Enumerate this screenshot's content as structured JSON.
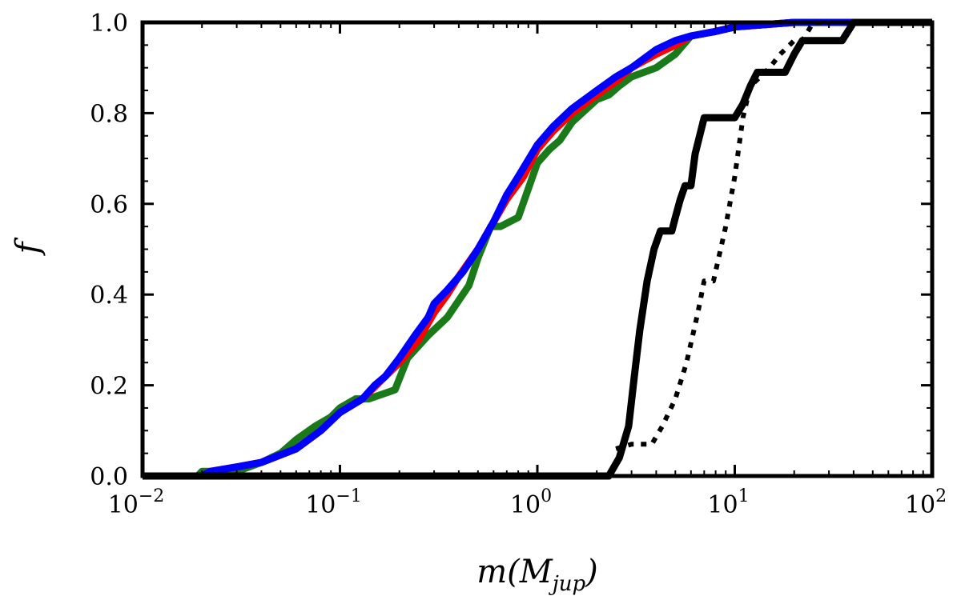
{
  "chart_data": {
    "type": "line",
    "title": "",
    "xlabel": {
      "main": "m(M",
      "sub": "jup",
      "close": ")"
    },
    "ylabel": "f",
    "xscale": "log",
    "xlim": [
      0.01,
      100
    ],
    "ylim": [
      0.0,
      1.0
    ],
    "x_ticks": [
      {
        "value": 0.01,
        "base": "10",
        "exp": "−2"
      },
      {
        "value": 0.1,
        "base": "10",
        "exp": "−1"
      },
      {
        "value": 1,
        "base": "10",
        "exp": "0"
      },
      {
        "value": 10,
        "base": "10",
        "exp": "1"
      },
      {
        "value": 100,
        "base": "10",
        "exp": "2"
      }
    ],
    "y_ticks": [
      {
        "value": 0.0,
        "label": "0.0"
      },
      {
        "value": 0.2,
        "label": "0.2"
      },
      {
        "value": 0.4,
        "label": "0.4"
      },
      {
        "value": 0.6,
        "label": "0.6"
      },
      {
        "value": 0.8,
        "label": "0.8"
      },
      {
        "value": 1.0,
        "label": "1.0"
      }
    ],
    "grid": false,
    "series": [
      {
        "name": "green",
        "color": "#1a7a1a",
        "style": "solid",
        "points": [
          [
            0.01,
            0.0
          ],
          [
            0.019,
            0.0
          ],
          [
            0.02,
            0.01
          ],
          [
            0.03,
            0.01
          ],
          [
            0.04,
            0.03
          ],
          [
            0.05,
            0.05
          ],
          [
            0.06,
            0.08
          ],
          [
            0.075,
            0.11
          ],
          [
            0.09,
            0.13
          ],
          [
            0.1,
            0.15
          ],
          [
            0.12,
            0.17
          ],
          [
            0.14,
            0.17
          ],
          [
            0.19,
            0.19
          ],
          [
            0.22,
            0.26
          ],
          [
            0.28,
            0.31
          ],
          [
            0.35,
            0.35
          ],
          [
            0.45,
            0.42
          ],
          [
            0.5,
            0.48
          ],
          [
            0.58,
            0.55
          ],
          [
            0.65,
            0.55
          ],
          [
            0.8,
            0.57
          ],
          [
            1.0,
            0.69
          ],
          [
            1.15,
            0.72
          ],
          [
            1.3,
            0.74
          ],
          [
            1.5,
            0.78
          ],
          [
            2.0,
            0.83
          ],
          [
            2.3,
            0.84
          ],
          [
            2.6,
            0.86
          ],
          [
            3.0,
            0.88
          ],
          [
            4.0,
            0.9
          ],
          [
            5.0,
            0.93
          ],
          [
            6.0,
            0.97
          ],
          [
            8.0,
            0.98
          ],
          [
            10.0,
            0.99
          ],
          [
            20.0,
            1.0
          ]
        ]
      },
      {
        "name": "red",
        "color": "#ff0000",
        "style": "solid",
        "points": [
          [
            0.01,
            0.0
          ],
          [
            0.02,
            0.0
          ],
          [
            0.022,
            0.01
          ],
          [
            0.03,
            0.02
          ],
          [
            0.04,
            0.03
          ],
          [
            0.06,
            0.06
          ],
          [
            0.08,
            0.1
          ],
          [
            0.1,
            0.14
          ],
          [
            0.13,
            0.17
          ],
          [
            0.17,
            0.22
          ],
          [
            0.2,
            0.25
          ],
          [
            0.25,
            0.3
          ],
          [
            0.3,
            0.36
          ],
          [
            0.35,
            0.4
          ],
          [
            0.4,
            0.44
          ],
          [
            0.5,
            0.5
          ],
          [
            0.6,
            0.56
          ],
          [
            0.7,
            0.61
          ],
          [
            0.85,
            0.66
          ],
          [
            1.0,
            0.72
          ],
          [
            1.2,
            0.76
          ],
          [
            1.5,
            0.8
          ],
          [
            2.0,
            0.84
          ],
          [
            2.5,
            0.87
          ],
          [
            3.0,
            0.9
          ],
          [
            4.0,
            0.93
          ],
          [
            5.0,
            0.95
          ],
          [
            6.0,
            0.97
          ],
          [
            8.0,
            0.98
          ],
          [
            10.0,
            0.99
          ],
          [
            20.0,
            1.0
          ]
        ]
      },
      {
        "name": "blue",
        "color": "#0000ff",
        "style": "solid",
        "points": [
          [
            0.01,
            0.0
          ],
          [
            0.02,
            0.0
          ],
          [
            0.022,
            0.01
          ],
          [
            0.03,
            0.02
          ],
          [
            0.04,
            0.03
          ],
          [
            0.06,
            0.06
          ],
          [
            0.08,
            0.1
          ],
          [
            0.1,
            0.14
          ],
          [
            0.13,
            0.17
          ],
          [
            0.15,
            0.2
          ],
          [
            0.17,
            0.22
          ],
          [
            0.2,
            0.26
          ],
          [
            0.24,
            0.31
          ],
          [
            0.28,
            0.35
          ],
          [
            0.3,
            0.38
          ],
          [
            0.35,
            0.41
          ],
          [
            0.42,
            0.45
          ],
          [
            0.5,
            0.5
          ],
          [
            0.6,
            0.56
          ],
          [
            0.7,
            0.62
          ],
          [
            0.8,
            0.66
          ],
          [
            1.0,
            0.73
          ],
          [
            1.2,
            0.77
          ],
          [
            1.5,
            0.81
          ],
          [
            2.0,
            0.85
          ],
          [
            2.5,
            0.88
          ],
          [
            3.0,
            0.9
          ],
          [
            4.0,
            0.94
          ],
          [
            5.0,
            0.96
          ],
          [
            6.0,
            0.97
          ],
          [
            8.0,
            0.98
          ],
          [
            10.0,
            0.99
          ],
          [
            20.0,
            1.0
          ],
          [
            100.0,
            1.0
          ]
        ]
      },
      {
        "name": "black-solid",
        "color": "#000000",
        "style": "solid",
        "points": [
          [
            0.01,
            0.0
          ],
          [
            2.3,
            0.0
          ],
          [
            2.6,
            0.04
          ],
          [
            2.9,
            0.11
          ],
          [
            3.1,
            0.22
          ],
          [
            3.3,
            0.32
          ],
          [
            3.6,
            0.43
          ],
          [
            3.9,
            0.5
          ],
          [
            4.2,
            0.54
          ],
          [
            4.8,
            0.54
          ],
          [
            5.0,
            0.57
          ],
          [
            5.3,
            0.61
          ],
          [
            5.6,
            0.64
          ],
          [
            6.0,
            0.64
          ],
          [
            6.3,
            0.71
          ],
          [
            7.0,
            0.79
          ],
          [
            10.0,
            0.79
          ],
          [
            11.0,
            0.82
          ],
          [
            12.0,
            0.86
          ],
          [
            13.0,
            0.89
          ],
          [
            18.0,
            0.89
          ],
          [
            20.0,
            0.93
          ],
          [
            22.0,
            0.96
          ],
          [
            35.0,
            0.96
          ],
          [
            40.0,
            1.0
          ],
          [
            100.0,
            1.0
          ]
        ]
      },
      {
        "name": "black-dotted",
        "color": "#000000",
        "style": "dotted",
        "points": [
          [
            2.5,
            0.06
          ],
          [
            3.0,
            0.07
          ],
          [
            3.8,
            0.07
          ],
          [
            4.3,
            0.11
          ],
          [
            5.0,
            0.17
          ],
          [
            5.7,
            0.25
          ],
          [
            6.5,
            0.36
          ],
          [
            7.0,
            0.43
          ],
          [
            7.8,
            0.43
          ],
          [
            9.0,
            0.55
          ],
          [
            10.0,
            0.66
          ],
          [
            11.0,
            0.79
          ],
          [
            12.0,
            0.86
          ],
          [
            13.5,
            0.88
          ],
          [
            15.0,
            0.9
          ],
          [
            17.0,
            0.93
          ],
          [
            20.0,
            0.96
          ],
          [
            22.0,
            0.96
          ],
          [
            25.0,
            1.0
          ],
          [
            30.0,
            1.0
          ]
        ]
      }
    ]
  }
}
